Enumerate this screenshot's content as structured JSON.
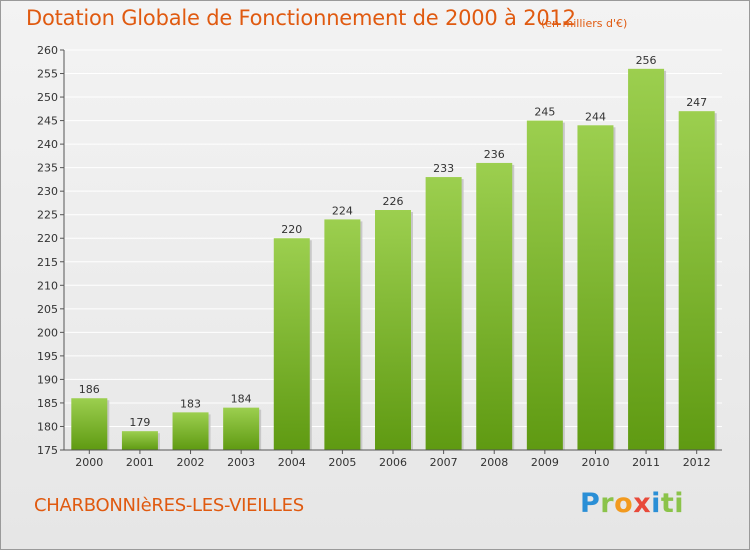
{
  "header": {
    "title": "Dotation Globale de Fonctionnement de 2000 à 2012",
    "subtitle": "(en milliers d'€)"
  },
  "footer": {
    "commune": "CHARBONNIèRES-LES-VIEILLES",
    "logo": [
      "P",
      "r",
      "o",
      "x",
      "i",
      "t",
      "i"
    ]
  },
  "colors": {
    "title": "#e05a10",
    "bar_top": "#9ccf4f",
    "bar_bottom": "#5f9a12"
  },
  "chart_data": {
    "type": "bar",
    "title": "Dotation Globale de Fonctionnement de 2000 à 2012",
    "subtitle": "(en milliers d'€)",
    "categories": [
      "2000",
      "2001",
      "2002",
      "2003",
      "2004",
      "2005",
      "2006",
      "2007",
      "2008",
      "2009",
      "2010",
      "2011",
      "2012"
    ],
    "values": [
      186,
      179,
      183,
      184,
      220,
      224,
      226,
      233,
      236,
      245,
      244,
      256,
      247
    ],
    "ylim": [
      175,
      260
    ],
    "yticks": [
      175,
      180,
      185,
      190,
      195,
      200,
      205,
      210,
      215,
      220,
      225,
      230,
      235,
      240,
      245,
      250,
      255,
      260
    ],
    "grid": true,
    "legend": "none"
  }
}
